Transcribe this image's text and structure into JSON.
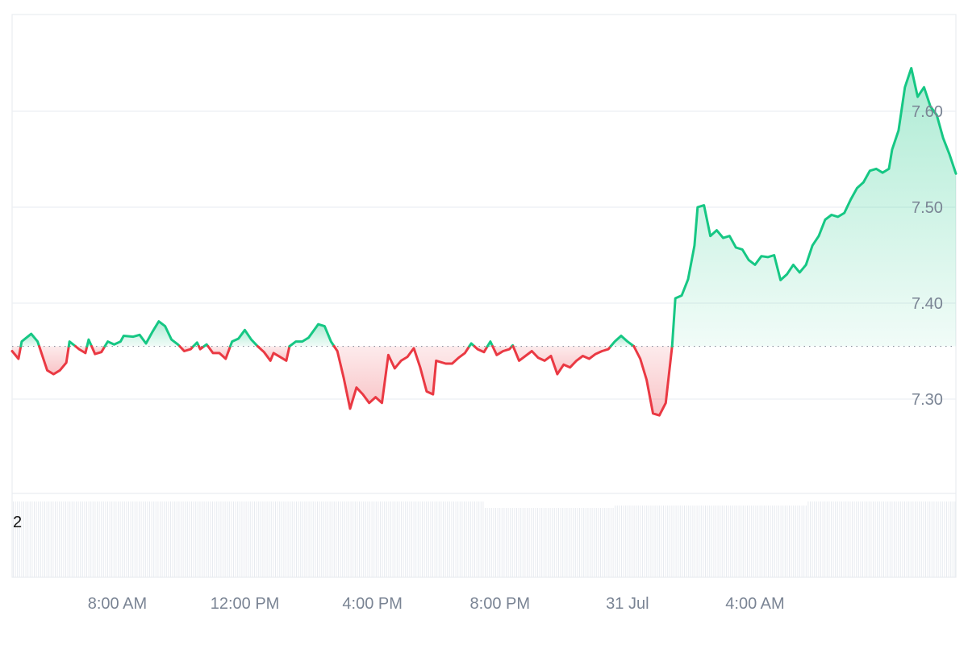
{
  "chart_data": {
    "type": "area",
    "baseline": 7.355,
    "ylim": [
      7.2,
      7.7
    ],
    "y_ticks": [
      7.3,
      7.4,
      7.5,
      7.6
    ],
    "y_tick_labels": [
      "7.30",
      "7.40",
      "7.50",
      "7.60"
    ],
    "x_range_hours": [
      4.7,
      34.3
    ],
    "x_ticks": [
      {
        "hour": 8,
        "label": "8:00 AM"
      },
      {
        "hour": 12,
        "label": "12:00 PM"
      },
      {
        "hour": 16,
        "label": "4:00 PM"
      },
      {
        "hour": 20,
        "label": "8:00 PM"
      },
      {
        "hour": 24,
        "label": "31 Jul"
      },
      {
        "hour": 28,
        "label": "4:00 AM"
      }
    ],
    "series": [
      {
        "points": [
          [
            4.7,
            7.35
          ],
          [
            4.9,
            7.342
          ],
          [
            5.0,
            7.36
          ],
          [
            5.3,
            7.368
          ],
          [
            5.5,
            7.36
          ],
          [
            5.8,
            7.33
          ],
          [
            6.0,
            7.326
          ],
          [
            6.2,
            7.33
          ],
          [
            6.4,
            7.338
          ],
          [
            6.5,
            7.36
          ],
          [
            6.8,
            7.352
          ],
          [
            7.0,
            7.348
          ],
          [
            7.1,
            7.362
          ],
          [
            7.3,
            7.347
          ],
          [
            7.5,
            7.349
          ],
          [
            7.7,
            7.36
          ],
          [
            7.9,
            7.357
          ],
          [
            8.1,
            7.36
          ],
          [
            8.2,
            7.366
          ],
          [
            8.5,
            7.365
          ],
          [
            8.7,
            7.367
          ],
          [
            8.9,
            7.358
          ],
          [
            9.1,
            7.37
          ],
          [
            9.3,
            7.381
          ],
          [
            9.5,
            7.376
          ],
          [
            9.7,
            7.362
          ],
          [
            9.9,
            7.357
          ],
          [
            10.1,
            7.35
          ],
          [
            10.3,
            7.352
          ],
          [
            10.5,
            7.359
          ],
          [
            10.6,
            7.352
          ],
          [
            10.8,
            7.357
          ],
          [
            11.0,
            7.348
          ],
          [
            11.2,
            7.348
          ],
          [
            11.4,
            7.342
          ],
          [
            11.6,
            7.36
          ],
          [
            11.8,
            7.363
          ],
          [
            12.0,
            7.372
          ],
          [
            12.2,
            7.362
          ],
          [
            12.4,
            7.355
          ],
          [
            12.6,
            7.349
          ],
          [
            12.8,
            7.34
          ],
          [
            12.9,
            7.348
          ],
          [
            13.1,
            7.344
          ],
          [
            13.3,
            7.34
          ],
          [
            13.4,
            7.355
          ],
          [
            13.6,
            7.36
          ],
          [
            13.8,
            7.36
          ],
          [
            14.0,
            7.364
          ],
          [
            14.3,
            7.378
          ],
          [
            14.5,
            7.376
          ],
          [
            14.7,
            7.36
          ],
          [
            14.9,
            7.35
          ],
          [
            15.1,
            7.322
          ],
          [
            15.3,
            7.29
          ],
          [
            15.5,
            7.312
          ],
          [
            15.7,
            7.305
          ],
          [
            15.9,
            7.296
          ],
          [
            16.1,
            7.302
          ],
          [
            16.3,
            7.296
          ],
          [
            16.5,
            7.346
          ],
          [
            16.7,
            7.332
          ],
          [
            16.9,
            7.34
          ],
          [
            17.1,
            7.344
          ],
          [
            17.3,
            7.353
          ],
          [
            17.5,
            7.333
          ],
          [
            17.7,
            7.308
          ],
          [
            17.9,
            7.305
          ],
          [
            18.0,
            7.34
          ],
          [
            18.3,
            7.337
          ],
          [
            18.5,
            7.337
          ],
          [
            18.7,
            7.343
          ],
          [
            18.9,
            7.348
          ],
          [
            19.1,
            7.358
          ],
          [
            19.3,
            7.352
          ],
          [
            19.5,
            7.349
          ],
          [
            19.7,
            7.36
          ],
          [
            19.9,
            7.346
          ],
          [
            20.1,
            7.35
          ],
          [
            20.3,
            7.352
          ],
          [
            20.4,
            7.356
          ],
          [
            20.6,
            7.34
          ],
          [
            20.8,
            7.345
          ],
          [
            21.0,
            7.35
          ],
          [
            21.2,
            7.343
          ],
          [
            21.4,
            7.34
          ],
          [
            21.6,
            7.345
          ],
          [
            21.8,
            7.326
          ],
          [
            22.0,
            7.336
          ],
          [
            22.2,
            7.333
          ],
          [
            22.4,
            7.34
          ],
          [
            22.6,
            7.345
          ],
          [
            22.8,
            7.342
          ],
          [
            23.0,
            7.347
          ],
          [
            23.2,
            7.35
          ],
          [
            23.4,
            7.352
          ],
          [
            23.6,
            7.36
          ],
          [
            23.8,
            7.366
          ],
          [
            24.0,
            7.36
          ],
          [
            24.2,
            7.355
          ],
          [
            24.4,
            7.342
          ],
          [
            24.6,
            7.32
          ],
          [
            24.8,
            7.285
          ],
          [
            25.0,
            7.283
          ],
          [
            25.2,
            7.296
          ],
          [
            25.4,
            7.355
          ],
          [
            25.5,
            7.405
          ],
          [
            25.7,
            7.408
          ],
          [
            25.9,
            7.425
          ],
          [
            26.1,
            7.46
          ],
          [
            26.2,
            7.5
          ],
          [
            26.4,
            7.502
          ],
          [
            26.6,
            7.47
          ],
          [
            26.8,
            7.476
          ],
          [
            27.0,
            7.468
          ],
          [
            27.2,
            7.47
          ],
          [
            27.4,
            7.458
          ],
          [
            27.6,
            7.456
          ],
          [
            27.8,
            7.445
          ],
          [
            28.0,
            7.44
          ],
          [
            28.2,
            7.449
          ],
          [
            28.4,
            7.448
          ],
          [
            28.6,
            7.45
          ],
          [
            28.8,
            7.424
          ],
          [
            29.0,
            7.43
          ],
          [
            29.2,
            7.44
          ],
          [
            29.4,
            7.432
          ],
          [
            29.6,
            7.44
          ],
          [
            29.8,
            7.46
          ],
          [
            30.0,
            7.47
          ],
          [
            30.2,
            7.487
          ],
          [
            30.4,
            7.492
          ],
          [
            30.6,
            7.49
          ],
          [
            30.8,
            7.494
          ],
          [
            31.0,
            7.508
          ],
          [
            31.2,
            7.52
          ],
          [
            31.4,
            7.526
          ],
          [
            31.6,
            7.538
          ],
          [
            31.8,
            7.54
          ],
          [
            32.0,
            7.536
          ],
          [
            32.2,
            7.54
          ],
          [
            32.3,
            7.56
          ],
          [
            32.5,
            7.58
          ],
          [
            32.7,
            7.625
          ],
          [
            32.9,
            7.645
          ],
          [
            33.1,
            7.615
          ],
          [
            33.3,
            7.625
          ],
          [
            33.5,
            7.605
          ],
          [
            33.7,
            7.596
          ],
          [
            33.9,
            7.572
          ],
          [
            34.1,
            7.555
          ],
          [
            34.3,
            7.535
          ]
        ]
      }
    ]
  },
  "volume": {
    "label": "2"
  }
}
